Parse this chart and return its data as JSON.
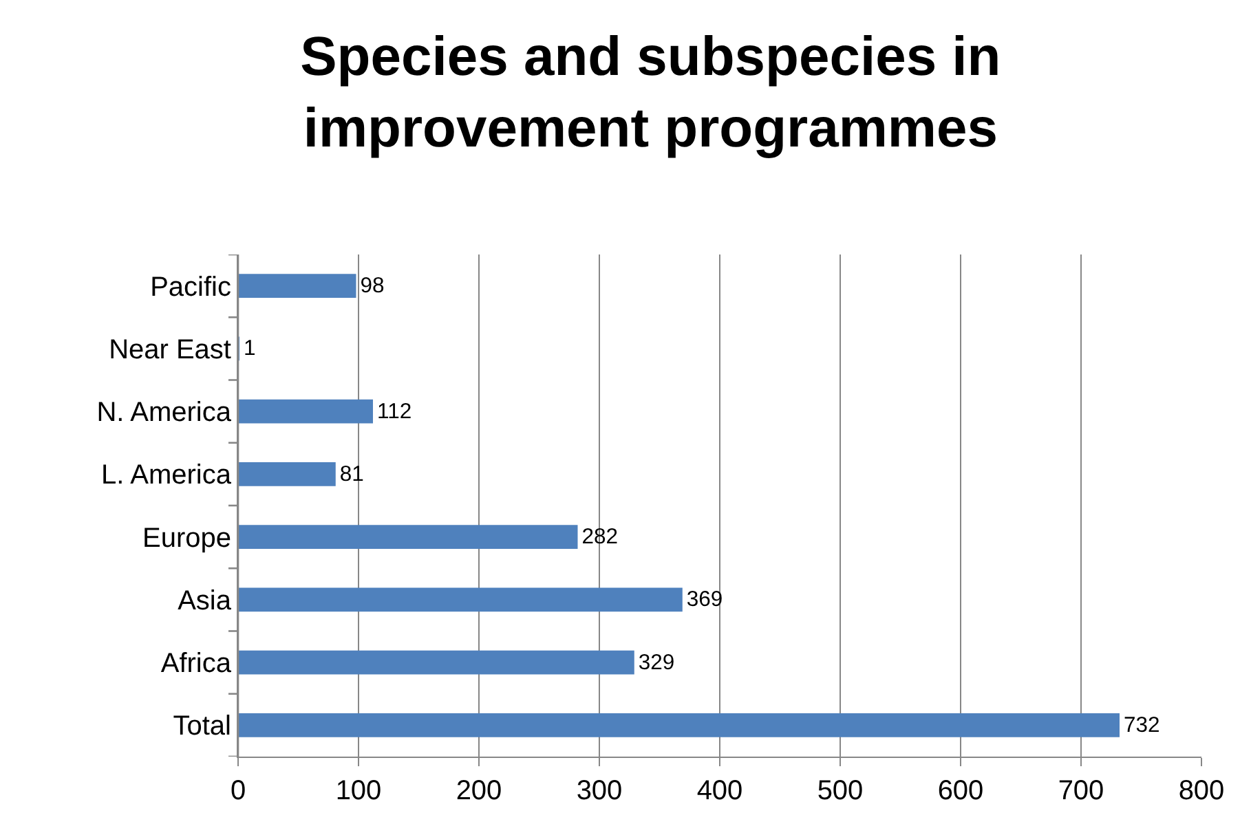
{
  "chart_data": {
    "type": "bar",
    "orientation": "horizontal",
    "title": "Species and subspecies in improvement programmes",
    "categories": [
      "Pacific",
      "Near East",
      "N. America",
      "L. America",
      "Europe",
      "Asia",
      "Africa",
      "Total"
    ],
    "values": [
      98,
      1,
      112,
      81,
      282,
      369,
      329,
      732
    ],
    "color": "#4f81bd",
    "data_labels": true,
    "xlim": [
      0,
      800
    ],
    "xticks": [
      0,
      100,
      200,
      300,
      400,
      500,
      600,
      700,
      800
    ],
    "grid": "x"
  }
}
